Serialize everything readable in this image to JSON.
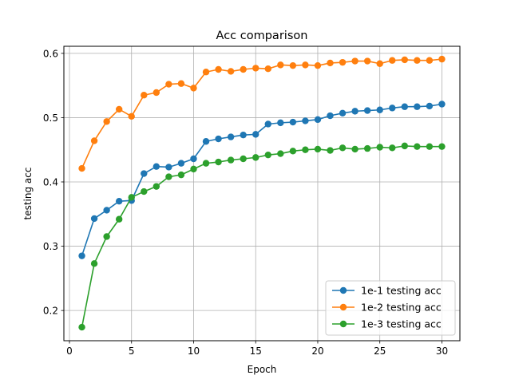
{
  "chart_data": {
    "type": "line",
    "title": "Acc comparison",
    "xlabel": "Epoch",
    "ylabel": "testing acc",
    "xlim": [
      -0.45,
      31.45
    ],
    "ylim": [
      0.153,
      0.611
    ],
    "xticks": [
      0,
      5,
      10,
      15,
      20,
      25,
      30
    ],
    "yticks": [
      0.2,
      0.3,
      0.4,
      0.5,
      0.6
    ],
    "grid": true,
    "legend_position": "bottom-right",
    "x": [
      1,
      2,
      3,
      4,
      5,
      6,
      7,
      8,
      9,
      10,
      11,
      12,
      13,
      14,
      15,
      16,
      17,
      18,
      19,
      20,
      21,
      22,
      23,
      24,
      25,
      26,
      27,
      28,
      29,
      30
    ],
    "series": [
      {
        "name": "1e-1 testing acc",
        "color": "#1f77b4",
        "values": [
          0.285,
          0.343,
          0.356,
          0.37,
          0.371,
          0.413,
          0.424,
          0.423,
          0.429,
          0.436,
          0.463,
          0.467,
          0.47,
          0.473,
          0.474,
          0.49,
          0.492,
          0.493,
          0.495,
          0.497,
          0.503,
          0.507,
          0.51,
          0.511,
          0.512,
          0.515,
          0.517,
          0.517,
          0.518,
          0.521
        ]
      },
      {
        "name": "1e-2 testing acc",
        "color": "#ff7f0e",
        "values": [
          0.421,
          0.464,
          0.494,
          0.513,
          0.502,
          0.535,
          0.539,
          0.552,
          0.553,
          0.546,
          0.571,
          0.575,
          0.572,
          0.575,
          0.577,
          0.576,
          0.582,
          0.581,
          0.582,
          0.581,
          0.585,
          0.586,
          0.588,
          0.588,
          0.584,
          0.589,
          0.59,
          0.589,
          0.589,
          0.591
        ]
      },
      {
        "name": "1e-3 testing acc",
        "color": "#2ca02c",
        "values": [
          0.174,
          0.273,
          0.315,
          0.342,
          0.376,
          0.385,
          0.393,
          0.408,
          0.411,
          0.42,
          0.429,
          0.431,
          0.434,
          0.436,
          0.438,
          0.442,
          0.444,
          0.448,
          0.45,
          0.451,
          0.449,
          0.453,
          0.451,
          0.452,
          0.454,
          0.453,
          0.456,
          0.455,
          0.455,
          0.455
        ]
      }
    ]
  }
}
